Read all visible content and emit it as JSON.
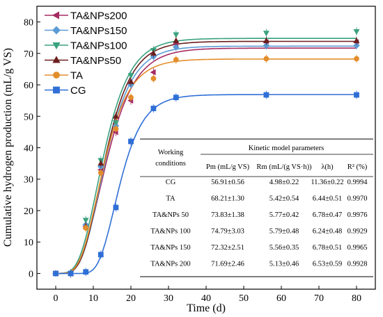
{
  "chart_data": {
    "type": "scatter",
    "xlabel": "Time (d)",
    "ylabel": "Cumulative hydrogen production (mL/g VS)",
    "xlim": [
      -5,
      85
    ],
    "ylim": [
      -5,
      85
    ],
    "xticks": [
      0,
      10,
      20,
      30,
      40,
      50,
      60,
      70,
      80
    ],
    "yticks": [
      0,
      10,
      20,
      30,
      40,
      50,
      60,
      70,
      80
    ],
    "x": [
      0,
      4,
      8,
      12,
      16,
      20,
      26,
      32,
      56,
      80
    ],
    "legend_position": "top-left",
    "series": [
      {
        "name": "TA&NPs200",
        "marker": "triangle-left",
        "color": "#a52a63",
        "values": [
          0,
          0,
          15,
          33,
          45,
          55,
          64,
          73,
          73.5,
          73.5
        ],
        "model": {
          "Pm": 71.69,
          "Rm": 5.13,
          "lambda": 6.53
        }
      },
      {
        "name": "TA&NPs150",
        "marker": "diamond",
        "color": "#5b9bd5",
        "values": [
          0,
          0,
          15.5,
          34,
          47,
          60,
          69,
          72,
          72.5,
          72.5
        ],
        "model": {
          "Pm": 72.32,
          "Rm": 5.56,
          "lambda": 6.78
        }
      },
      {
        "name": "TA&NPs100",
        "marker": "triangle-down",
        "color": "#3aa17e",
        "values": [
          0,
          0,
          17,
          36,
          48,
          63,
          71,
          76,
          76.5,
          77
        ],
        "model": {
          "Pm": 74.79,
          "Rm": 5.79,
          "lambda": 6.24
        }
      },
      {
        "name": "TA&NPs50",
        "marker": "triangle-up",
        "color": "#6b1e1e",
        "values": [
          0,
          0,
          15,
          35,
          50,
          61,
          70,
          74,
          74,
          74
        ],
        "model": {
          "Pm": 73.83,
          "Rm": 5.77,
          "lambda": 6.78
        }
      },
      {
        "name": "TA",
        "marker": "circle",
        "color": "#e38d2c",
        "values": [
          0,
          0,
          14.5,
          32,
          46,
          56,
          62,
          68,
          68.3,
          68.3
        ],
        "model": {
          "Pm": 68.21,
          "Rm": 5.42,
          "lambda": 6.44
        }
      },
      {
        "name": "CG",
        "marker": "square",
        "color": "#2f6fd6",
        "values": [
          0,
          0,
          0.5,
          6,
          21,
          42,
          52.5,
          56,
          56.8,
          56.8
        ],
        "model": {
          "Pm": 56.91,
          "Rm": 4.98,
          "lambda": 11.36
        }
      }
    ],
    "table": {
      "col1_line1": "Working",
      "col1_line2": "conditions",
      "group_header": "Kinetic model parameters",
      "h_pm": "Pm (mL/g VS)",
      "h_rm": "Rm (mL/(g VS·h))",
      "h_lambda": "λ(h)",
      "h_r2": "R² (%)",
      "rows": [
        [
          "CG",
          "56.91±0.56",
          "4.98±0.22",
          "11.36±0.22",
          "0.9994"
        ],
        [
          "TA",
          "68.21±1.30",
          "5.42±0.54",
          "6.44±0.51",
          "0.9970"
        ],
        [
          "TA&NPs 50",
          "73.83±1.38",
          "5.77±0.42",
          "6.78±0.47",
          "0.9976"
        ],
        [
          "TA&NPs 100",
          "74.79±3.03",
          "5.79±0.48",
          "6.24±0.48",
          "0.9929"
        ],
        [
          "TA&NPs 150",
          "72.32±2.51",
          "5.56±0.35",
          "6.78±0.51",
          "0.9965"
        ],
        [
          "TA&NPs 200",
          "71.69±2.46",
          "5.13±0.46",
          "6.53±0.59",
          "0.9928"
        ]
      ]
    }
  }
}
